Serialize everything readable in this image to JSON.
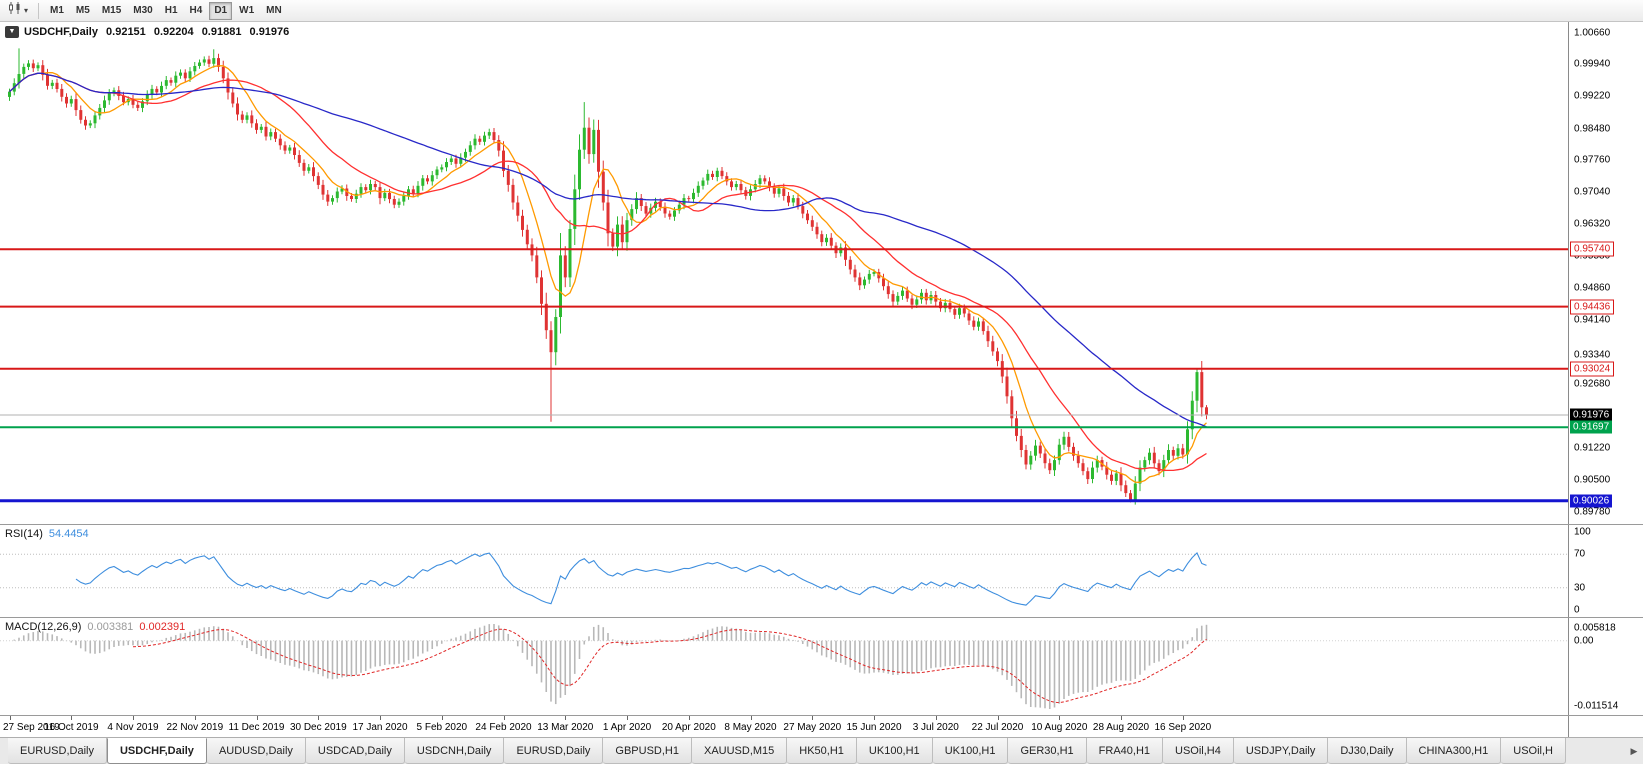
{
  "toolbar": {
    "chart_type_tooltip": "Candlesticks",
    "timeframes": [
      {
        "label": "M1",
        "active": false
      },
      {
        "label": "M5",
        "active": false
      },
      {
        "label": "M15",
        "active": false
      },
      {
        "label": "M30",
        "active": false
      },
      {
        "label": "H1",
        "active": false
      },
      {
        "label": "H4",
        "active": false
      },
      {
        "label": "D1",
        "active": true
      },
      {
        "label": "W1",
        "active": false
      },
      {
        "label": "MN",
        "active": false
      }
    ]
  },
  "chart_header": {
    "symbol": "USDCHF,Daily",
    "open": "0.92151",
    "high": "0.92204",
    "low": "0.91881",
    "close": "0.91976"
  },
  "price_axis": {
    "labels": [
      "1.00660",
      "0.99940",
      "0.99220",
      "0.98480",
      "0.97760",
      "0.97040",
      "0.96320",
      "0.95580",
      "0.94860",
      "0.94140",
      "0.93340",
      "0.92680",
      "0.91220",
      "0.90500",
      "0.89780"
    ],
    "tags": [
      {
        "value": "0.95740",
        "style": "outline",
        "color": "#d81818"
      },
      {
        "value": "0.94436",
        "style": "outline",
        "color": "#d81818"
      },
      {
        "value": "0.93024",
        "style": "outline",
        "color": "#d81818"
      },
      {
        "value": "0.91976",
        "style": "solid",
        "color": "#000000"
      },
      {
        "value": "0.91697",
        "style": "solid",
        "color": "#00a24d"
      },
      {
        "value": "0.90026",
        "style": "solid",
        "color": "#1515d0"
      }
    ]
  },
  "rsi_panel": {
    "name": "RSI(14)",
    "value": "54.4454",
    "axis_labels": [
      "100",
      "70",
      "30",
      "0"
    ],
    "levels": [
      70,
      30
    ],
    "range": [
      0,
      100
    ]
  },
  "macd_panel": {
    "name": "MACD(12,26,9)",
    "hist_value": "0.003381",
    "signal_value": "0.002391",
    "axis_labels": [
      "0.005818",
      "0.00",
      "-0.011514"
    ]
  },
  "time_axis": {
    "bars_per_label": 13,
    "labels": [
      "27 Sep 2019",
      "16 Oct 2019",
      "4 Nov 2019",
      "22 Nov 2019",
      "11 Dec 2019",
      "30 Dec 2019",
      "17 Jan 2020",
      "5 Feb 2020",
      "24 Feb 2020",
      "13 Mar 2020",
      "1 Apr 2020",
      "20 Apr 2020",
      "8 May 2020",
      "27 May 2020",
      "15 Jun 2020",
      "3 Jul 2020",
      "22 Jul 2020",
      "10 Aug 2020",
      "28 Aug 2020",
      "16 Sep 2020"
    ]
  },
  "tabs": {
    "scroll_right_label": "▶",
    "items": [
      {
        "label": "EURUSD,Daily",
        "active": false
      },
      {
        "label": "USDCHF,Daily",
        "active": true
      },
      {
        "label": "AUDUSD,Daily",
        "active": false
      },
      {
        "label": "USDCAD,Daily",
        "active": false
      },
      {
        "label": "USDCNH,Daily",
        "active": false
      },
      {
        "label": "EURUSD,Daily",
        "active": false
      },
      {
        "label": "GBPUSD,H1",
        "active": false
      },
      {
        "label": "XAUUSD,M15",
        "active": false
      },
      {
        "label": "HK50,H1",
        "active": false
      },
      {
        "label": "UK100,H1",
        "active": false
      },
      {
        "label": "UK100,H1",
        "active": false
      },
      {
        "label": "GER30,H1",
        "active": false
      },
      {
        "label": "FRA40,H1",
        "active": false
      },
      {
        "label": "USOil,H4",
        "active": false
      },
      {
        "label": "USDJPY,Daily",
        "active": false
      },
      {
        "label": "DJ30,Daily",
        "active": false
      },
      {
        "label": "CHINA300,H1",
        "active": false
      },
      {
        "label": "USOil,H",
        "active": false
      }
    ]
  },
  "chart_data": {
    "type": "candlestick",
    "symbol": "USDCHF",
    "timeframe": "Daily",
    "y_range": [
      0.895,
      1.009
    ],
    "open_first": 0.992,
    "colors": {
      "up": "#2cb930",
      "down": "#df3333"
    },
    "closes": [
      0.9932,
      0.9951,
      0.9972,
      0.9988,
      0.9996,
      0.9985,
      0.9992,
      0.997,
      0.9945,
      0.9952,
      0.9938,
      0.992,
      0.9905,
      0.9915,
      0.989,
      0.9868,
      0.9855,
      0.986,
      0.9878,
      0.9895,
      0.9912,
      0.9928,
      0.9935,
      0.9922,
      0.9908,
      0.9915,
      0.9902,
      0.9895,
      0.991,
      0.9925,
      0.9938,
      0.993,
      0.9945,
      0.9958,
      0.9952,
      0.9968,
      0.9975,
      0.9962,
      0.9978,
      0.999,
      0.9998,
      1.0005,
      0.9995,
      1.0008,
      0.9988,
      0.9962,
      0.993,
      0.9905,
      0.988,
      0.9868,
      0.9878,
      0.986,
      0.9845,
      0.9852,
      0.983,
      0.984,
      0.9825,
      0.981,
      0.9798,
      0.9805,
      0.9788,
      0.977,
      0.9752,
      0.976,
      0.974,
      0.972,
      0.9698,
      0.9682,
      0.969,
      0.9705,
      0.9712,
      0.9695,
      0.9688,
      0.97,
      0.9715,
      0.9708,
      0.9722,
      0.9715,
      0.969,
      0.9702,
      0.9688,
      0.9675,
      0.9682,
      0.9695,
      0.971,
      0.97,
      0.9718,
      0.9735,
      0.9728,
      0.9742,
      0.9755,
      0.976,
      0.9772,
      0.978,
      0.9768,
      0.9782,
      0.9795,
      0.981,
      0.9825,
      0.9818,
      0.9832,
      0.984,
      0.9822,
      0.9798,
      0.9752,
      0.972,
      0.968,
      0.965,
      0.9618,
      0.9585,
      0.956,
      0.951,
      0.945,
      0.939,
      0.934,
      0.942,
      0.956,
      0.951,
      0.962,
      0.971,
      0.98,
      0.985,
      0.979,
      0.9845,
      0.975,
      0.968,
      0.961,
      0.958,
      0.963,
      0.959,
      0.964,
      0.9665,
      0.969,
      0.9672,
      0.9655,
      0.9668,
      0.9682,
      0.967,
      0.9655,
      0.9648,
      0.9662,
      0.9675,
      0.969,
      0.9688,
      0.9702,
      0.9718,
      0.973,
      0.9745,
      0.9738,
      0.9752,
      0.974,
      0.9728,
      0.9715,
      0.9722,
      0.9708,
      0.9695,
      0.971,
      0.9722,
      0.9735,
      0.9728,
      0.9715,
      0.97,
      0.9712,
      0.9695,
      0.968,
      0.969,
      0.9672,
      0.9655,
      0.964,
      0.9625,
      0.9608,
      0.959,
      0.96,
      0.9582,
      0.9565,
      0.9578,
      0.955,
      0.9528,
      0.951,
      0.9492,
      0.9505,
      0.9518,
      0.9522,
      0.9508,
      0.949,
      0.9472,
      0.9455,
      0.9468,
      0.948,
      0.9462,
      0.9448,
      0.946,
      0.9475,
      0.9458,
      0.947,
      0.9455,
      0.944,
      0.9452,
      0.9438,
      0.9425,
      0.944,
      0.9428,
      0.9412,
      0.9398,
      0.941,
      0.9388,
      0.9365,
      0.9342,
      0.932,
      0.9285,
      0.924,
      0.919,
      0.915,
      0.9118,
      0.9085,
      0.9105,
      0.9128,
      0.911,
      0.9088,
      0.9072,
      0.9095,
      0.913,
      0.9148,
      0.9125,
      0.9105,
      0.9088,
      0.907,
      0.9052,
      0.9078,
      0.9095,
      0.908,
      0.9062,
      0.9048,
      0.9065,
      0.9038,
      0.902,
      0.9005,
      0.9042,
      0.9078,
      0.9095,
      0.9112,
      0.9088,
      0.907,
      0.9095,
      0.9118,
      0.9105,
      0.9122,
      0.9108,
      0.9165,
      0.923,
      0.9295,
      0.9215,
      0.9198
    ],
    "wick_overrides": {
      "2": {
        "high": 1.003
      },
      "43": {
        "high": 1.0028
      },
      "114": {
        "low": 0.9182
      },
      "121": {
        "high": 0.9908
      },
      "236": {
        "low": 0.8999
      },
      "250": {
        "high": 0.9302
      },
      "252": {
        "high": 0.922,
        "low": 0.9188
      }
    },
    "hlines": [
      {
        "price": 0.9574,
        "color": "#d81818",
        "width": 2,
        "role": "resistance"
      },
      {
        "price": 0.94436,
        "color": "#d81818",
        "width": 2,
        "role": "resistance"
      },
      {
        "price": 0.93024,
        "color": "#d81818",
        "width": 2,
        "role": "resistance"
      },
      {
        "price": 0.91976,
        "color": "#b2b2b2",
        "width": 1,
        "role": "current-price"
      },
      {
        "price": 0.91697,
        "color": "#00a24d",
        "width": 2,
        "role": "support"
      },
      {
        "price": 0.90026,
        "color": "#1515d0",
        "width": 3,
        "role": "support"
      }
    ],
    "moving_averages": [
      {
        "period": 8,
        "color": "#ff9a00"
      },
      {
        "period": 21,
        "color": "#ff3030"
      },
      {
        "period": 55,
        "color": "#2828c8"
      }
    ],
    "rsi": {
      "period": 14,
      "color": "#3e8ede"
    },
    "macd": {
      "fast": 12,
      "slow": 26,
      "signal": 9,
      "hist_color": "#b8b8b8",
      "signal_color": "#e02828"
    }
  }
}
